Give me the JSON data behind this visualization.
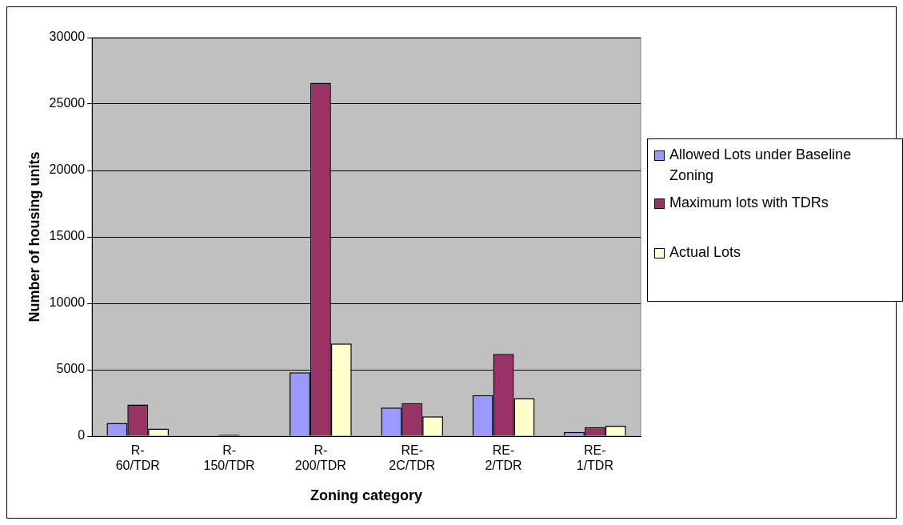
{
  "chart_data": {
    "type": "bar",
    "xlabel": "Zoning category",
    "ylabel": "Number of housing units",
    "categories": [
      "R-60/TDR",
      "R-150/TDR",
      "R-200/TDR",
      "RE-2C/TDR",
      "RE-2/TDR",
      "RE-1/TDR"
    ],
    "series": [
      {
        "name": "Allowed Lots under Baseline Zoning",
        "color": "#9999ff",
        "values": [
          1000,
          null,
          4800,
          2150,
          3080,
          320
        ]
      },
      {
        "name": "Maximum lots with TDRs",
        "color": "#993366",
        "values": [
          2380,
          100,
          26600,
          2490,
          6190,
          680
        ]
      },
      {
        "name": "Actual Lots",
        "color": "#ffffcc",
        "values": [
          570,
          null,
          6970,
          1490,
          2860,
          780
        ]
      }
    ],
    "ylim": [
      0,
      30000
    ],
    "yticks": [
      0,
      5000,
      10000,
      15000,
      20000,
      25000,
      30000
    ],
    "grid": "y",
    "legend": "right"
  }
}
